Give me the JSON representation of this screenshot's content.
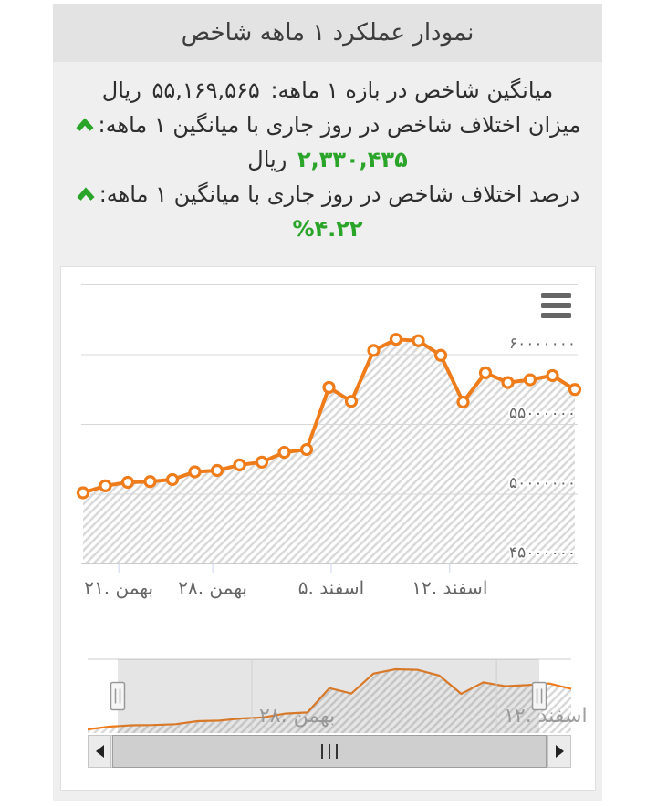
{
  "page": {
    "bg": "#ffffff",
    "panel_bg": "#efefef",
    "band_bg": "#e3e3e3"
  },
  "header": {
    "title": "نمودار عملکرد ۱ ماهه شاخص"
  },
  "stats": {
    "up_color": "#2aa52a",
    "avg": {
      "label": "میانگین شاخص در بازه ۱ ماهه:",
      "value": "۵۵,۱۶۹,۵۶۵",
      "unit": "ریال"
    },
    "diff": {
      "label": "میزان اختلاف شاخص در روز جاری با میانگین ۱ ماهه:",
      "value": "۲,۳۳۰,۴۳۵",
      "unit": "ریال"
    },
    "pct": {
      "label": "درصد اختلاف شاخص در روز جاری با میانگین ۱ ماهه:",
      "value": "۴.۲۲%"
    }
  },
  "chart_data": {
    "type": "area",
    "title": "",
    "series_color": "#ef7c1a",
    "grid_color": "#d8d8d8",
    "axis_line_color": "#cccccc",
    "tick_color": "#ccd6eb",
    "marker": {
      "fill": "#ffffff",
      "radius": 5.5
    },
    "ylim": [
      45000000,
      65000000
    ],
    "values": [
      50100000,
      50600000,
      50850000,
      50900000,
      51050000,
      51600000,
      51700000,
      52100000,
      52300000,
      53000000,
      53200000,
      57650000,
      56650000,
      60300000,
      61100000,
      61000000,
      59950000,
      56600000,
      58700000,
      58000000,
      58200000,
      58500000,
      57500000
    ],
    "y_ticks": [
      {
        "value": 45000000,
        "label": "۴۵۰۰۰۰۰۰"
      },
      {
        "value": 50000000,
        "label": "۵۰۰۰۰۰۰۰"
      },
      {
        "value": 55000000,
        "label": "۵۵۰۰۰۰۰۰"
      },
      {
        "value": 60000000,
        "label": "۶۰۰۰۰۰۰۰"
      },
      {
        "value": 65000000,
        "label": ""
      }
    ],
    "x_ticks": [
      {
        "day": 1.6,
        "label": "۲۱. بهمن"
      },
      {
        "day": 5.8,
        "label": "۲۸. بهمن"
      },
      {
        "day": 11.1,
        "label": "۵. اسفند"
      },
      {
        "day": 16.4,
        "label": "۱۲. اسفند"
      }
    ],
    "navigator": {
      "range": [
        1.37,
        20.55
      ],
      "mask_color": "rgba(110,110,110,0.18)",
      "gridlines": [
        {
          "day": 7.47,
          "label": "۲۸. بهمن"
        },
        {
          "day": 18.6,
          "label": "اسفند .۱۲"
        }
      ]
    }
  },
  "chart_ui": {
    "menu_icon": "hamburger-menu",
    "scrollbar": {
      "left_icon": "triangle-left",
      "right_icon": "triangle-right",
      "grip_icon": "grip-lines"
    }
  }
}
